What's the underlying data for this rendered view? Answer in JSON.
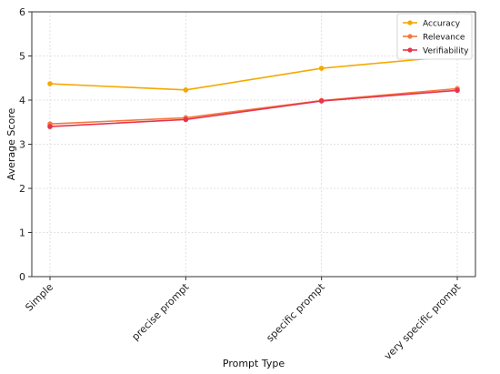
{
  "chart_data": {
    "type": "line",
    "categories": [
      "Simple",
      "precise prompt",
      "specific prompt",
      "very specific prompt"
    ],
    "series": [
      {
        "name": "Accuracy",
        "values": [
          4.37,
          4.23,
          4.72,
          5.0
        ],
        "color": "#f5a800"
      },
      {
        "name": "Relevance",
        "values": [
          3.46,
          3.6,
          3.99,
          4.26
        ],
        "color": "#f47a3a"
      },
      {
        "name": "Verifiability",
        "values": [
          3.4,
          3.56,
          3.98,
          4.22
        ],
        "color": "#e8334f"
      }
    ],
    "title": "",
    "xlabel": "Prompt Type",
    "ylabel": "Average Score",
    "ylim": [
      0,
      6
    ],
    "yticks": [
      "0",
      "1",
      "2",
      "3",
      "4",
      "5",
      "6"
    ],
    "grid": true,
    "legend_position": "top-right"
  }
}
